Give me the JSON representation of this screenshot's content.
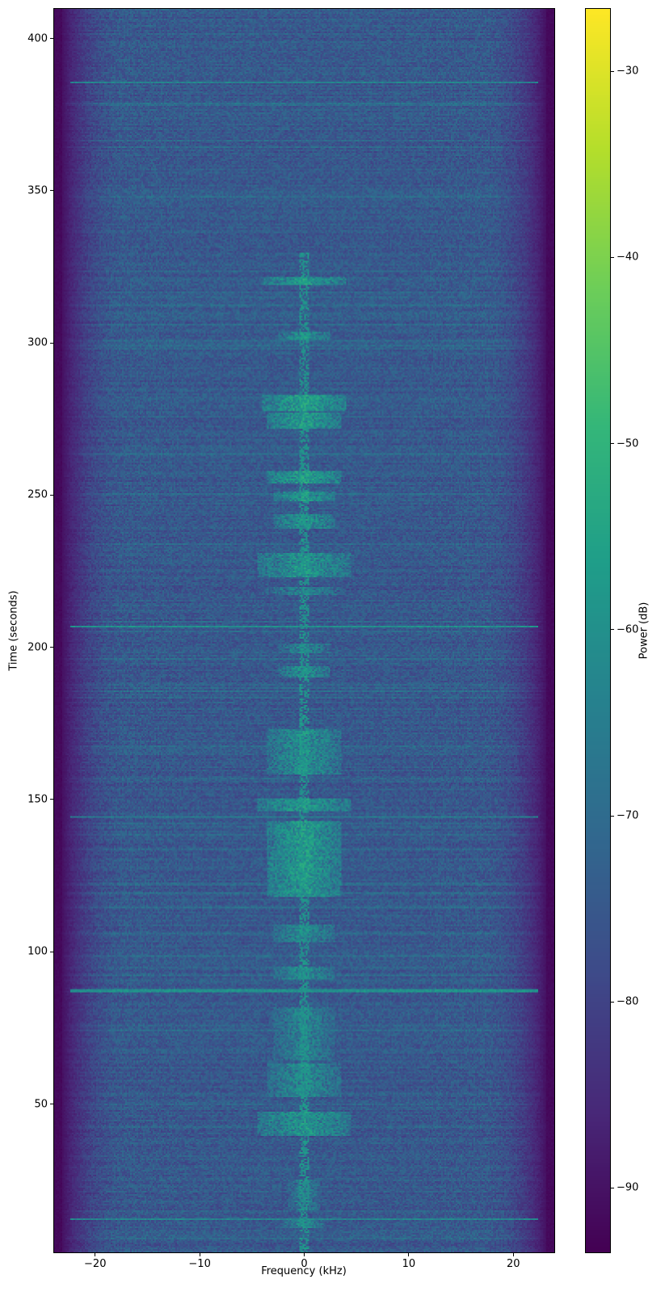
{
  "chart_data": {
    "type": "heatmap",
    "xlabel": "Frequency (kHz)",
    "ylabel": "Time (seconds)",
    "colorbar_label": "Power (dB)",
    "colormap": "viridis",
    "xlim": [
      -24,
      24
    ],
    "ylim": [
      1,
      410
    ],
    "clim": [
      -93.5,
      -26.6
    ],
    "xticks": [
      -20,
      -10,
      0,
      10,
      20
    ],
    "xtick_labels": [
      "−20",
      "−10",
      "0",
      "10",
      "20"
    ],
    "yticks": [
      50,
      100,
      150,
      200,
      250,
      300,
      350,
      400
    ],
    "ytick_labels": [
      "50",
      "100",
      "150",
      "200",
      "250",
      "300",
      "350",
      "400"
    ],
    "cticks": [
      -30,
      -40,
      -50,
      -60,
      -70,
      -80,
      -90
    ],
    "ctick_labels": [
      "−30",
      "−40",
      "−50",
      "−60",
      "−70",
      "−80",
      "−90"
    ],
    "noise_floor_db": -75,
    "band_edge_khz": 22,
    "edge_floor_db": -92,
    "bursts": [
      {
        "t": [
          319,
          322
        ],
        "bw": 4,
        "db": -55
      },
      {
        "t": [
          301,
          304
        ],
        "bw": 2.5,
        "db": -57
      },
      {
        "t": [
          278,
          283
        ],
        "bw": 4,
        "db": -54
      },
      {
        "t": [
          272,
          277
        ],
        "bw": 3.5,
        "db": -55
      },
      {
        "t": [
          254,
          258
        ],
        "bw": 3.5,
        "db": -54
      },
      {
        "t": [
          248,
          251
        ],
        "bw": 3,
        "db": -56
      },
      {
        "t": [
          239,
          244
        ],
        "bw": 3,
        "db": -57
      },
      {
        "t": [
          223,
          231
        ],
        "bw": 4.5,
        "db": -57
      },
      {
        "t": [
          217,
          220
        ],
        "bw": 4,
        "db": -62
      },
      {
        "t": [
          198,
          201
        ],
        "bw": 2.5,
        "db": -60
      },
      {
        "t": [
          190,
          194
        ],
        "bw": 2.5,
        "db": -58
      },
      {
        "t": [
          158,
          173
        ],
        "bw": 3.5,
        "db": -58
      },
      {
        "t": [
          146,
          150
        ],
        "bw": 4.5,
        "db": -56
      },
      {
        "t": [
          118,
          143
        ],
        "bw": 3.5,
        "db": -55
      },
      {
        "t": [
          103,
          109
        ],
        "bw": 3,
        "db": -59
      },
      {
        "t": [
          91,
          95
        ],
        "bw": 3,
        "db": -59
      },
      {
        "t": [
          64,
          82
        ],
        "bw": 3,
        "db": -61
      },
      {
        "t": [
          52,
          63
        ],
        "bw": 3.5,
        "db": -59
      },
      {
        "t": [
          39,
          47
        ],
        "bw": 4.5,
        "db": -57
      },
      {
        "t": [
          15,
          25
        ],
        "bw": 1.5,
        "db": -62
      },
      {
        "t": [
          9,
          12
        ],
        "bw": 2,
        "db": -60
      }
    ],
    "horizontal_lines": [
      {
        "t": 207,
        "db": -60
      },
      {
        "t": 87,
        "db": -60
      },
      {
        "t": 12,
        "db": -63
      },
      {
        "t": 386,
        "db": -64
      },
      {
        "t": 144,
        "db": -66
      }
    ]
  }
}
